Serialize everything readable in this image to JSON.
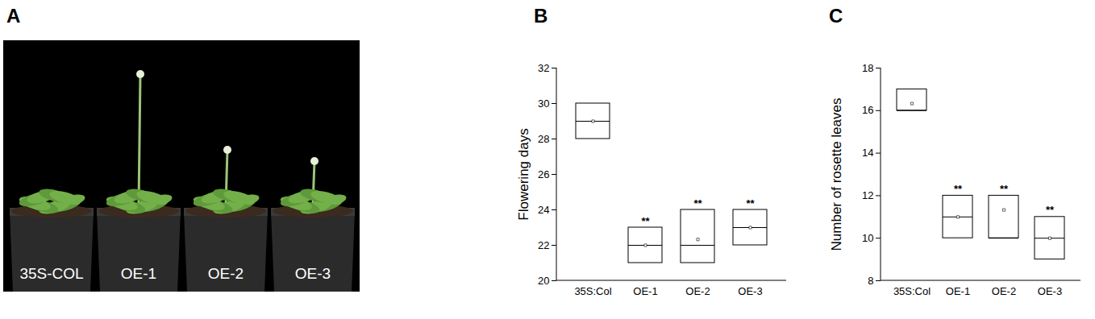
{
  "image_panel": {
    "title": "A",
    "labels": [
      "35S-COL",
      "OE-1",
      "OE-2",
      "OE-3"
    ]
  },
  "chart_data": [
    {
      "type": "box",
      "title": "B",
      "y_label": "Flowering days",
      "categories": [
        "35S:Col",
        "OE-1",
        "OE-2",
        "OE-3"
      ],
      "low": [
        28,
        21,
        21,
        22
      ],
      "high": [
        30,
        23,
        24,
        24
      ],
      "median": [
        29,
        22,
        22,
        23
      ],
      "mean": [
        29,
        22,
        22.33,
        23
      ],
      "annotations": [
        null,
        "**",
        "**",
        "**"
      ],
      "ylim": [
        20,
        32
      ],
      "yticks": [
        20,
        22,
        24,
        26,
        28,
        30,
        32
      ]
    },
    {
      "type": "box",
      "title": "C",
      "y_label": "Number of rosette leaves",
      "categories": [
        "35S:Col",
        "OE-1",
        "OE-2",
        "OE-3"
      ],
      "low": [
        16,
        10,
        10,
        9
      ],
      "high": [
        17,
        12,
        12,
        11
      ],
      "median": [
        16,
        11,
        10,
        10
      ],
      "mean": [
        16.33,
        11,
        11.33,
        10
      ],
      "annotations": [
        null,
        "**",
        "**",
        "**"
      ],
      "ylim": [
        8,
        18
      ],
      "yticks": [
        8,
        10,
        12,
        14,
        16,
        18
      ]
    }
  ]
}
